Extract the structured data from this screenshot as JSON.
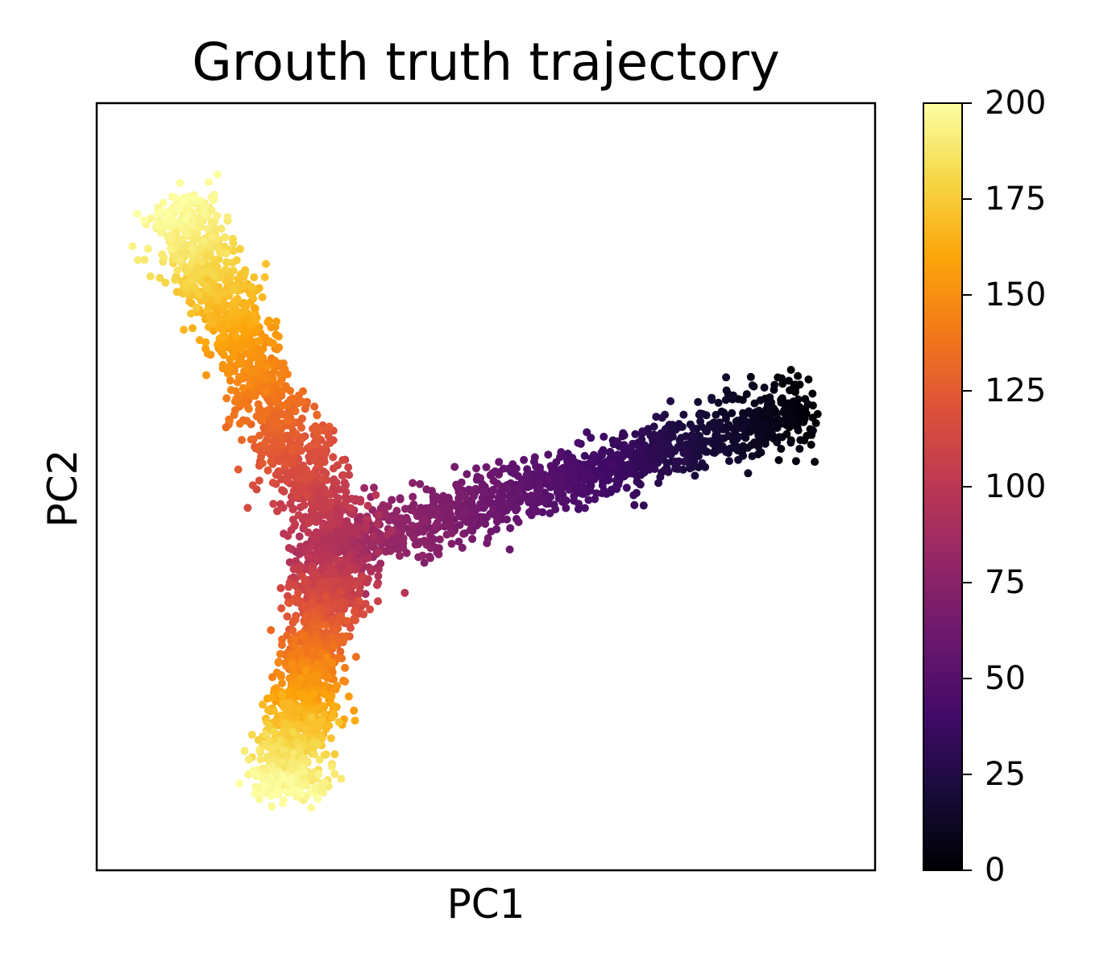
{
  "chart_data": {
    "type": "scatter",
    "title": "Grouth truth trajectory",
    "xlabel": "PC1",
    "ylabel": "PC2",
    "x_ticks_shown": false,
    "y_ticks_shown": false,
    "xlim": [
      0,
      100
    ],
    "ylim": [
      0,
      100
    ],
    "colormap": "inferno",
    "colorbar": {
      "range": [
        0,
        200
      ],
      "ticks": [
        "0",
        "25",
        "50",
        "75",
        "100",
        "125",
        "150",
        "175",
        "200"
      ]
    },
    "trajectory": {
      "description_of_structure": "three branches meeting at a junction",
      "branches": [
        {
          "name": "",
          "from": [
            91,
            60
          ],
          "to": [
            31,
            42
          ],
          "time_range": [
            0,
            90
          ],
          "spread": 2.2,
          "points": 1300
        },
        {
          "name": "",
          "from": [
            31,
            42
          ],
          "to": [
            10,
            87
          ],
          "time_range": [
            90,
            200
          ],
          "spread": 2.6,
          "points": 1300
        },
        {
          "name": "",
          "from": [
            31,
            42
          ],
          "to": [
            24,
            10
          ],
          "time_range": [
            90,
            200
          ],
          "spread": 2.6,
          "points": 1300
        }
      ]
    }
  }
}
